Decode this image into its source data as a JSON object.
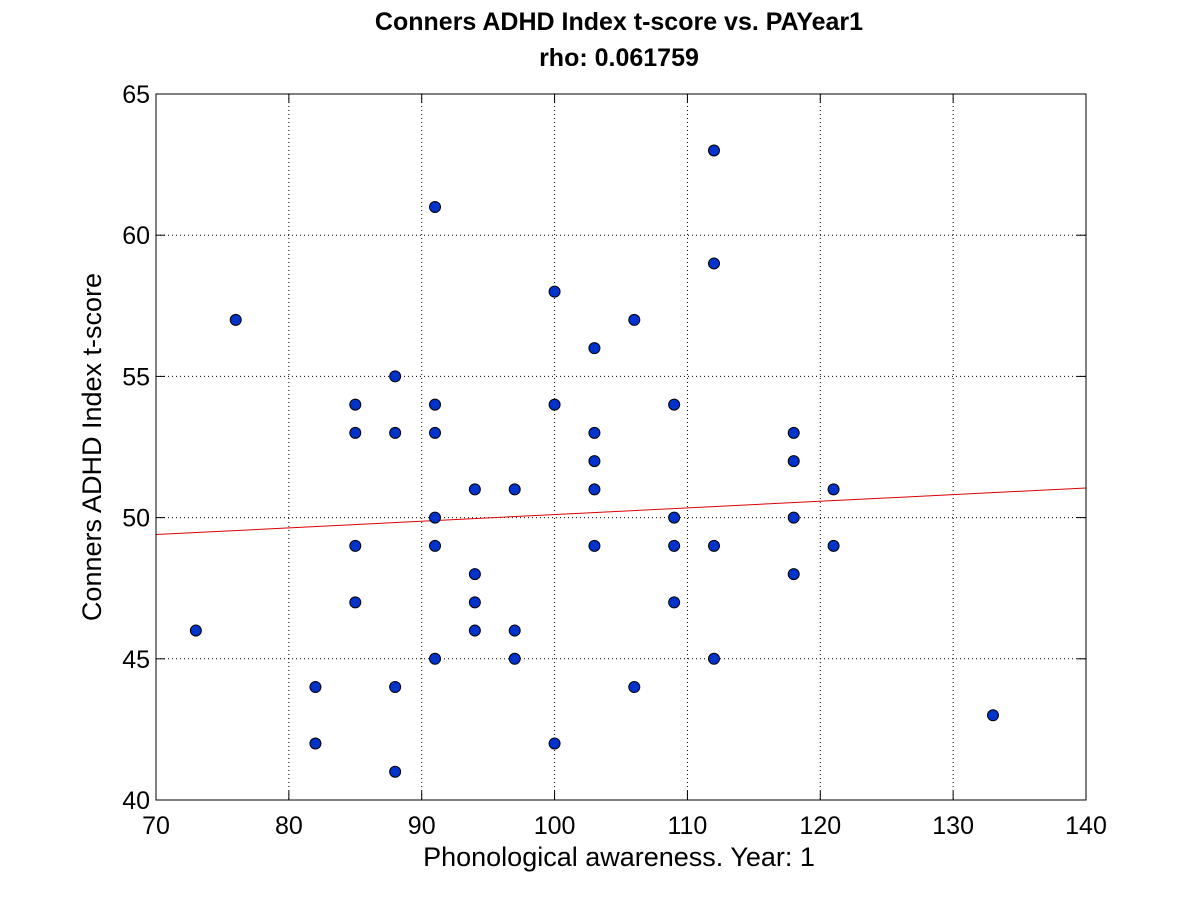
{
  "chart_data": {
    "type": "scatter",
    "title": "Conners ADHD Index t-score vs. PAYear1",
    "subtitle": "rho: 0.061759",
    "xlabel": "Phonological awareness. Year: 1",
    "ylabel": "Conners ADHD Index t-score",
    "xlim": [
      70,
      140
    ],
    "ylim": [
      40,
      65
    ],
    "xticks": [
      "70",
      "80",
      "90",
      "100",
      "110",
      "120",
      "130",
      "140"
    ],
    "yticks": [
      "40",
      "45",
      "50",
      "55",
      "60",
      "65"
    ],
    "grid": true,
    "marker_color": "#0033cc",
    "fit_line_color": "#dd0000",
    "fit_line": {
      "x": [
        70,
        140
      ],
      "y": [
        49.4,
        51.05
      ]
    },
    "points": [
      [
        73,
        46
      ],
      [
        76,
        57
      ],
      [
        82,
        44
      ],
      [
        82,
        42
      ],
      [
        85,
        54
      ],
      [
        85,
        53
      ],
      [
        85,
        49
      ],
      [
        85,
        47
      ],
      [
        88,
        55
      ],
      [
        88,
        53
      ],
      [
        88,
        44
      ],
      [
        88,
        41
      ],
      [
        91,
        61
      ],
      [
        91,
        54
      ],
      [
        91,
        53
      ],
      [
        91,
        50
      ],
      [
        91,
        49
      ],
      [
        91,
        45
      ],
      [
        94,
        51
      ],
      [
        94,
        48
      ],
      [
        94,
        47
      ],
      [
        94,
        46
      ],
      [
        97,
        51
      ],
      [
        97,
        46
      ],
      [
        97,
        45
      ],
      [
        100,
        58
      ],
      [
        100,
        54
      ],
      [
        100,
        42
      ],
      [
        103,
        56
      ],
      [
        103,
        53
      ],
      [
        103,
        52
      ],
      [
        103,
        51
      ],
      [
        103,
        49
      ],
      [
        106,
        57
      ],
      [
        106,
        44
      ],
      [
        109,
        54
      ],
      [
        109,
        50
      ],
      [
        109,
        49
      ],
      [
        109,
        47
      ],
      [
        112,
        63
      ],
      [
        112,
        59
      ],
      [
        112,
        49
      ],
      [
        112,
        45
      ],
      [
        118,
        53
      ],
      [
        118,
        52
      ],
      [
        118,
        50
      ],
      [
        118,
        48
      ],
      [
        121,
        51
      ],
      [
        121,
        49
      ],
      [
        133,
        43
      ]
    ]
  }
}
